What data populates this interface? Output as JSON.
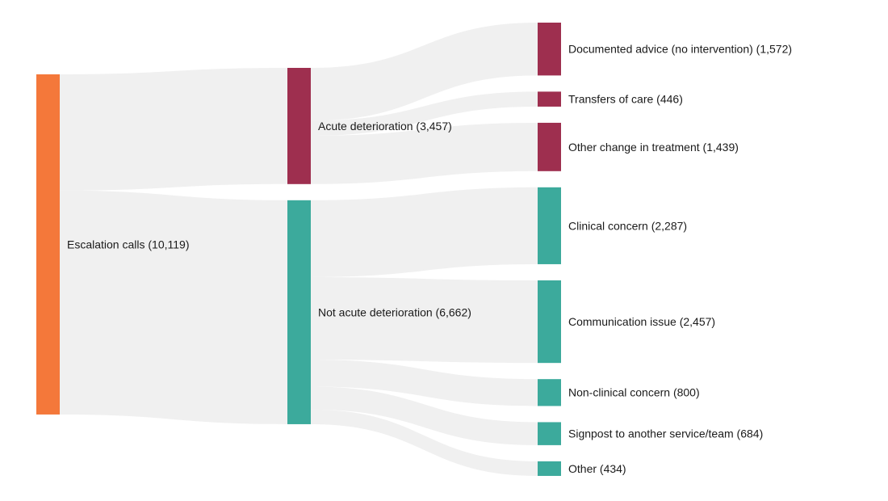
{
  "chart_data": {
    "type": "sankey",
    "title": "",
    "background_color": "#ffffff",
    "link_color": "#f0f0f0",
    "label_color": "#1a1a1a",
    "total": 10119,
    "nodes": [
      {
        "id": "escalation",
        "label": "Escalation calls (10,119)",
        "value": 10119,
        "column": 0,
        "color": "#f4783a"
      },
      {
        "id": "acute",
        "label": "Acute deterioration (3,457)",
        "value": 3457,
        "column": 1,
        "color": "#9e2f4f"
      },
      {
        "id": "not-acute",
        "label": "Not acute deterioration (6,662)",
        "value": 6662,
        "column": 1,
        "color": "#3caa9c"
      },
      {
        "id": "documented",
        "label": "Documented advice (no intervention) (1,572)",
        "value": 1572,
        "column": 2,
        "color": "#9e2f4f"
      },
      {
        "id": "transfers",
        "label": "Transfers of care (446)",
        "value": 446,
        "column": 2,
        "color": "#9e2f4f"
      },
      {
        "id": "other-change",
        "label": "Other change in treatment (1,439)",
        "value": 1439,
        "column": 2,
        "color": "#9e2f4f"
      },
      {
        "id": "clinical",
        "label": "Clinical concern (2,287)",
        "value": 2287,
        "column": 2,
        "color": "#3caa9c"
      },
      {
        "id": "communication",
        "label": "Communication issue (2,457)",
        "value": 2457,
        "column": 2,
        "color": "#3caa9c"
      },
      {
        "id": "non-clinical",
        "label": "Non-clinical concern (800)",
        "value": 800,
        "column": 2,
        "color": "#3caa9c"
      },
      {
        "id": "signpost",
        "label": "Signpost to another service/team (684)",
        "value": 684,
        "column": 2,
        "color": "#3caa9c"
      },
      {
        "id": "other",
        "label": "Other (434)",
        "value": 434,
        "column": 2,
        "color": "#3caa9c"
      }
    ],
    "links": [
      {
        "source": "escalation",
        "target": "acute",
        "value": 3457
      },
      {
        "source": "escalation",
        "target": "not-acute",
        "value": 6662
      },
      {
        "source": "acute",
        "target": "documented",
        "value": 1572
      },
      {
        "source": "acute",
        "target": "transfers",
        "value": 446
      },
      {
        "source": "acute",
        "target": "other-change",
        "value": 1439
      },
      {
        "source": "not-acute",
        "target": "clinical",
        "value": 2287
      },
      {
        "source": "not-acute",
        "target": "communication",
        "value": 2457
      },
      {
        "source": "not-acute",
        "target": "non-clinical",
        "value": 800
      },
      {
        "source": "not-acute",
        "target": "signpost",
        "value": 684
      },
      {
        "source": "not-acute",
        "target": "other",
        "value": 434
      }
    ]
  }
}
